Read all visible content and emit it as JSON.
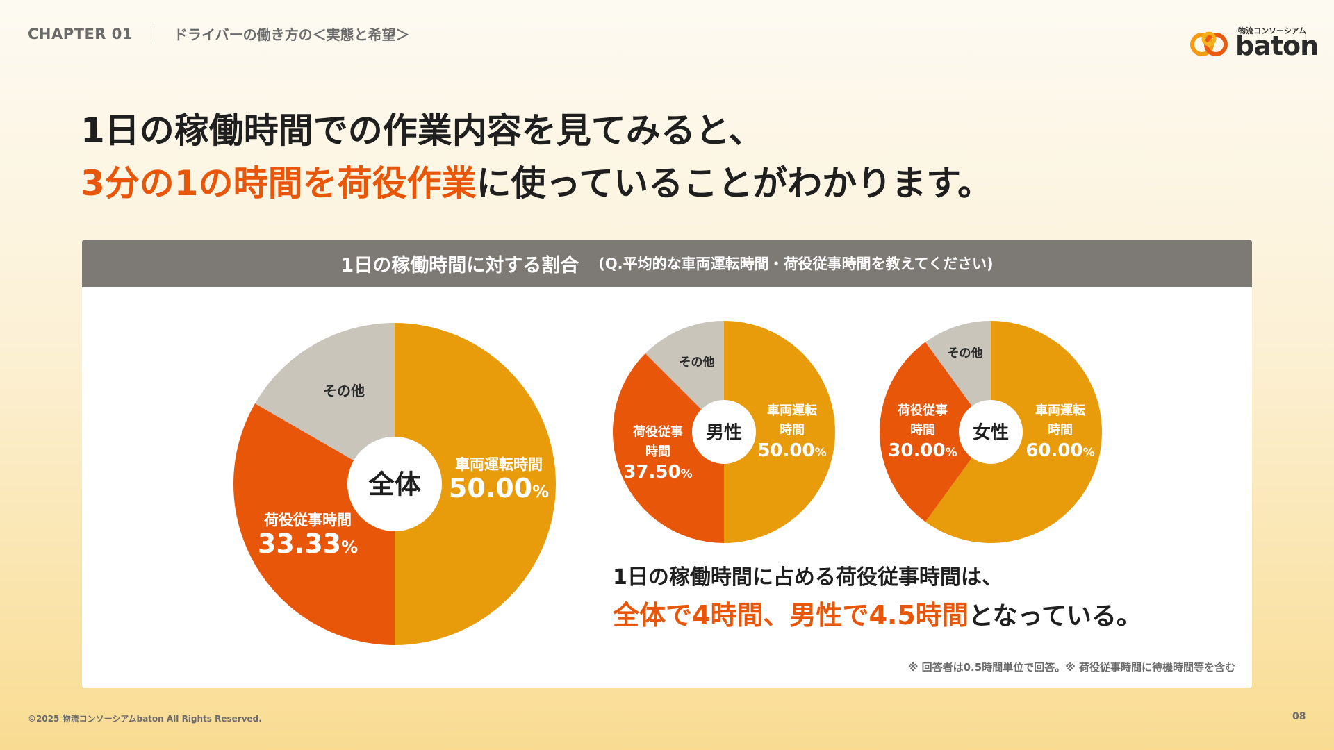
{
  "header": {
    "chapter": "CHAPTER 01",
    "section": "ドライバーの働き方の＜実態と希望＞"
  },
  "logo": {
    "sub": "物流コンソーシアム",
    "main": "baton"
  },
  "headline": {
    "line1": "1日の稼働時間での作業内容を見てみると、",
    "line2_highlight": "3分の1の時間を荷役作業",
    "line2_rest": "に使っていることがわかります。"
  },
  "card": {
    "title": "1日の稼働時間に対する割合",
    "question": "(Q.平均的な車両運転時間・荷役従事時間を教えてください)"
  },
  "summary": {
    "line1": "1日の稼働時間に占める荷役従事時間は、",
    "line2_highlight": "全体で4時間、男性で4.5時間",
    "line2_rest": "となっている。"
  },
  "note": "※ 回答者は0.5時間単位で回答。※ 荷役従事時間に待機時間等を含む",
  "footer": {
    "copyright": "©2025 物流コンソーシアムbaton All Rights Reserved.",
    "page": "08"
  },
  "colors": {
    "driving": "#e89c0c",
    "loading": "#e8560a",
    "other": "#c9c5bb",
    "accent": "#e8560a",
    "header_bar": "#7d7974"
  },
  "chart_data": [
    {
      "type": "pie",
      "title": "全体",
      "categories": [
        "車両運転時間",
        "荷役従事時間",
        "その他"
      ],
      "values": [
        50.0,
        33.33,
        16.67
      ],
      "labels": [
        "50.00",
        "33.33",
        ""
      ],
      "unit": "%"
    },
    {
      "type": "pie",
      "title": "男性",
      "categories": [
        "車両運転時間",
        "荷役従事時間",
        "その他"
      ],
      "values": [
        50.0,
        37.5,
        12.5
      ],
      "labels": [
        "50.00",
        "37.50",
        ""
      ],
      "unit": "%"
    },
    {
      "type": "pie",
      "title": "女性",
      "categories": [
        "車両運転時間",
        "荷役従事時間",
        "その他"
      ],
      "values": [
        60.0,
        30.0,
        10.0
      ],
      "labels": [
        "60.00",
        "30.00",
        ""
      ],
      "unit": "%"
    }
  ]
}
